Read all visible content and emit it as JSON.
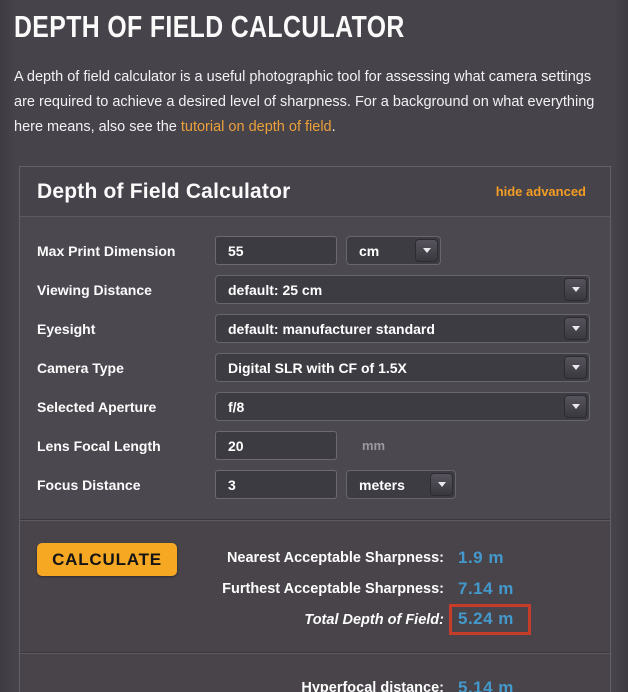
{
  "page": {
    "title": "DEPTH OF FIELD CALCULATOR",
    "intro_before": "A depth of field calculator is a useful photographic tool for assessing what camera settings are required to achieve a desired level of sharpness. For a background on what everything here means, also see the ",
    "intro_link": "tutorial on depth of field",
    "intro_after": "."
  },
  "calculator": {
    "title": "Depth of Field Calculator",
    "hide_advanced_label": "hide advanced",
    "fields": {
      "max_print_dimension": {
        "label": "Max Print Dimension",
        "value": "55",
        "unit_selected": "cm"
      },
      "viewing_distance": {
        "label": "Viewing Distance",
        "selected": "default: 25 cm"
      },
      "eyesight": {
        "label": "Eyesight",
        "selected": "default: manufacturer standard"
      },
      "camera_type": {
        "label": "Camera Type",
        "selected": "Digital SLR with CF of 1.5X"
      },
      "selected_aperture": {
        "label": "Selected Aperture",
        "selected": "f/8"
      },
      "lens_focal_length": {
        "label": "Lens Focal Length",
        "value": "20",
        "unit_label": "mm"
      },
      "focus_distance": {
        "label": "Focus Distance",
        "value": "3",
        "unit_selected": "meters"
      }
    },
    "results": {
      "calculate_label": "CALCULATE",
      "nearest": {
        "label": "Nearest Acceptable Sharpness:",
        "value": "1.9 m"
      },
      "furthest": {
        "label": "Furthest Acceptable Sharpness:",
        "value": "7.14 m"
      },
      "total": {
        "label": "Total Depth of Field:",
        "value": "5.24 m",
        "highlighted": true
      },
      "hyperfocal": {
        "label": "Hyperfocal distance:",
        "value": "5.14 m"
      }
    }
  },
  "colors": {
    "accent_orange": "#eca03a",
    "button_orange": "#f6a823",
    "value_blue": "#4499cc",
    "highlight_red": "#c63c2a",
    "page_background": "#46434a",
    "panel_background": "#4b4850"
  }
}
